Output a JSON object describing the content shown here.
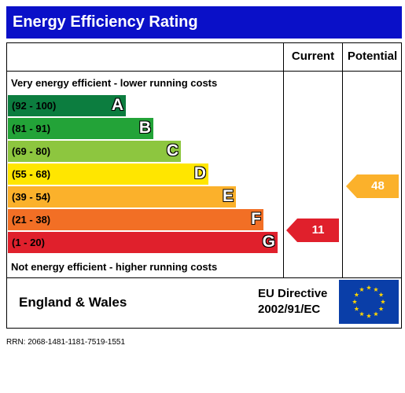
{
  "title": "Energy Efficiency Rating",
  "columns": {
    "current": "Current",
    "potential": "Potential"
  },
  "top_caption": "Very energy efficient - lower running costs",
  "bottom_caption": "Not energy efficient - higher running costs",
  "bands": [
    {
      "letter": "A",
      "range": "(92 - 100)",
      "color": "#0c7d3f"
    },
    {
      "letter": "B",
      "range": "(81 - 91)",
      "color": "#23a338"
    },
    {
      "letter": "C",
      "range": "(69 - 80)",
      "color": "#8dc63f"
    },
    {
      "letter": "D",
      "range": "(55 - 68)",
      "color": "#ffe600"
    },
    {
      "letter": "E",
      "range": "(39 - 54)",
      "color": "#fbb12b"
    },
    {
      "letter": "F",
      "range": "(21 - 38)",
      "color": "#f26f25"
    },
    {
      "letter": "G",
      "range": "(1 - 20)",
      "color": "#e0202c"
    }
  ],
  "ratings": {
    "current": {
      "value": "11",
      "color": "#e0202c"
    },
    "potential": {
      "value": "48",
      "color": "#fbb12b"
    }
  },
  "footer": {
    "region": "England & Wales",
    "directive_line1": "EU Directive",
    "directive_line2": "2002/91/EC",
    "flag_colors": {
      "background": "#0a3ea8",
      "stars": "#ffd400"
    }
  },
  "rrn": "RRN: 2068-1481-1181-7519-1551"
}
